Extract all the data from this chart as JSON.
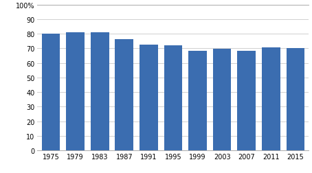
{
  "categories": [
    "1975",
    "1979",
    "1983",
    "1987",
    "1991",
    "1995",
    "1999",
    "2003",
    "2007",
    "2011",
    "2015"
  ],
  "values": [
    79.9,
    81.2,
    81.2,
    76.5,
    72.5,
    71.9,
    68.3,
    69.7,
    68.2,
    70.5,
    70.1
  ],
  "bar_color": "#3b6db0",
  "ylim": [
    0,
    100
  ],
  "yticks": [
    0,
    10,
    20,
    30,
    40,
    50,
    60,
    70,
    80,
    90,
    100
  ],
  "ytick_labels": [
    "0",
    "10",
    "20",
    "30",
    "40",
    "50",
    "60",
    "70",
    "80",
    "90",
    "100%"
  ],
  "grid_color": "#d0d0d0",
  "background_color": "#ffffff",
  "bar_width": 0.75,
  "spine_color": "#aaaaaa",
  "tick_fontsize": 7.0
}
